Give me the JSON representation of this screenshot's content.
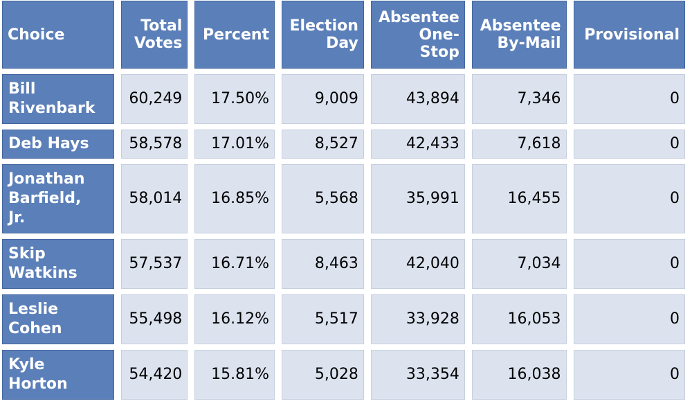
{
  "table": {
    "headers": [
      {
        "lines": [
          "Choice"
        ]
      },
      {
        "lines": [
          "Total",
          "Votes"
        ]
      },
      {
        "lines": [
          "Percent"
        ]
      },
      {
        "lines": [
          "Election",
          "Day"
        ]
      },
      {
        "lines": [
          "Absentee",
          "One-",
          "Stop"
        ]
      },
      {
        "lines": [
          "Absentee",
          "By-Mail"
        ]
      },
      {
        "lines": [
          "Provisional"
        ]
      }
    ],
    "rows": [
      {
        "choice": [
          "Bill",
          "Rivenbark"
        ],
        "total_votes": "60,249",
        "percent": "17.50%",
        "election_day": "9,009",
        "absentee_one_stop": "43,894",
        "absentee_by_mail": "7,346",
        "provisional": "0"
      },
      {
        "choice": [
          "Deb Hays"
        ],
        "total_votes": "58,578",
        "percent": "17.01%",
        "election_day": "8,527",
        "absentee_one_stop": "42,433",
        "absentee_by_mail": "7,618",
        "provisional": "0"
      },
      {
        "choice": [
          "Jonathan",
          "Barfield,",
          "Jr."
        ],
        "total_votes": "58,014",
        "percent": "16.85%",
        "election_day": "5,568",
        "absentee_one_stop": "35,991",
        "absentee_by_mail": "16,455",
        "provisional": "0"
      },
      {
        "choice": [
          "Skip",
          "Watkins"
        ],
        "total_votes": "57,537",
        "percent": "16.71%",
        "election_day": "8,463",
        "absentee_one_stop": "42,040",
        "absentee_by_mail": "7,034",
        "provisional": "0"
      },
      {
        "choice": [
          "Leslie",
          "Cohen"
        ],
        "total_votes": "55,498",
        "percent": "16.12%",
        "election_day": "5,517",
        "absentee_one_stop": "33,928",
        "absentee_by_mail": "16,053",
        "provisional": "0"
      },
      {
        "choice": [
          "Kyle",
          "Horton"
        ],
        "total_votes": "54,420",
        "percent": "15.81%",
        "election_day": "5,028",
        "absentee_one_stop": "33,354",
        "absentee_by_mail": "16,038",
        "provisional": "0"
      }
    ]
  },
  "colors": {
    "header_bg": "#5b7fb9",
    "cell_bg": "#dce3ef",
    "header_text": "#ffffff"
  }
}
